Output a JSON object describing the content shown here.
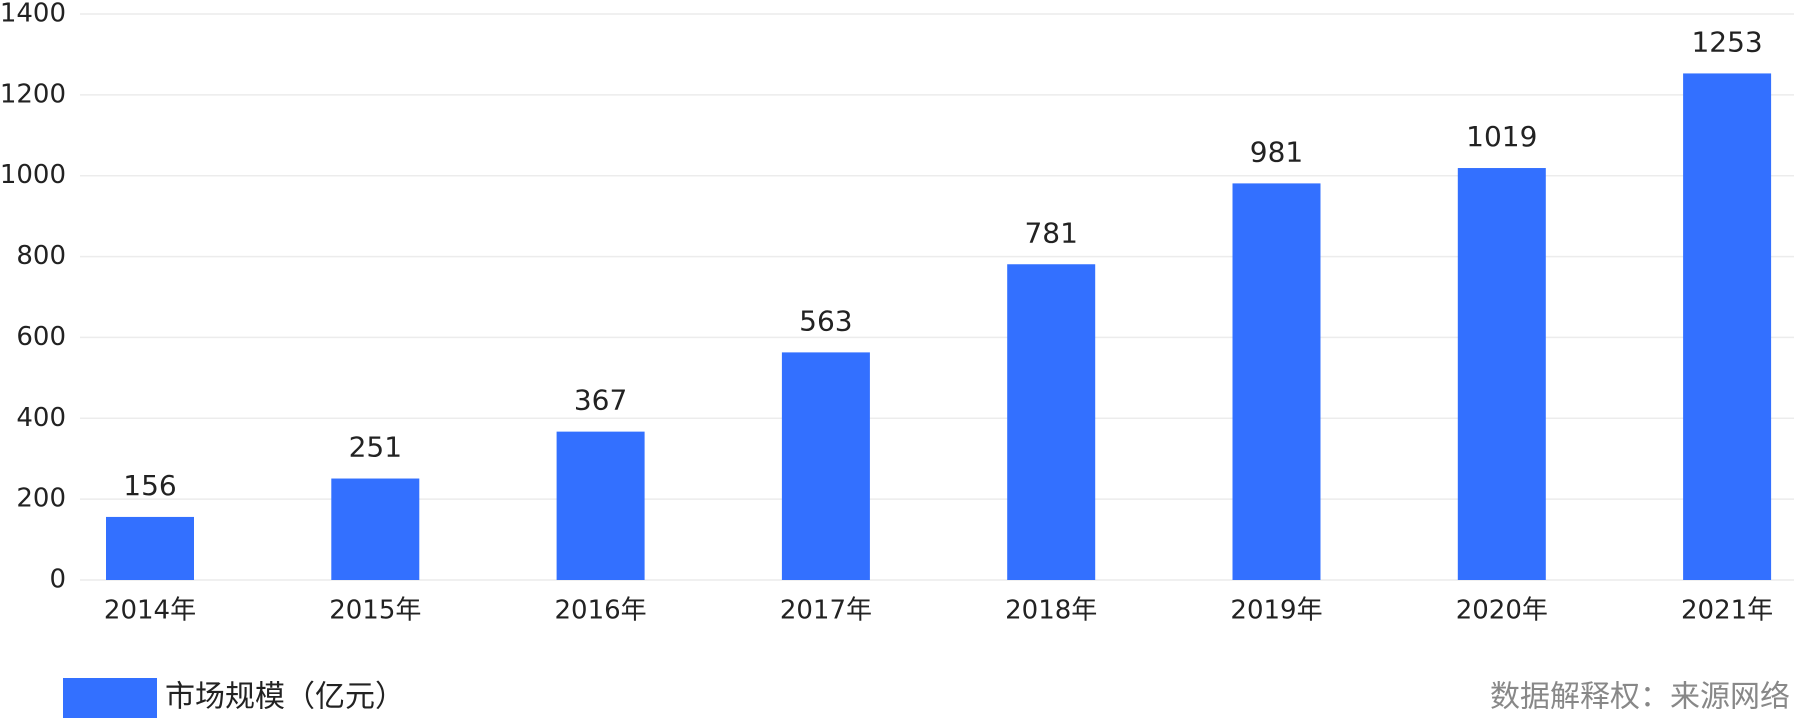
{
  "chart_data": {
    "type": "bar",
    "categories": [
      "2014年",
      "2015年",
      "2016年",
      "2017年",
      "2018年",
      "2019年",
      "2020年",
      "2021年"
    ],
    "series": [
      {
        "name": "市场规模（亿元）",
        "color": "#3370ff",
        "values": [
          156,
          251,
          367,
          563,
          781,
          981,
          1019,
          1253
        ]
      }
    ],
    "ylim": [
      0,
      1400
    ],
    "yticks": [
      0,
      200,
      400,
      600,
      800,
      1000,
      1200,
      1400
    ],
    "grid": true,
    "legend": "bottom-left",
    "source": "数据解释权：来源网络"
  }
}
